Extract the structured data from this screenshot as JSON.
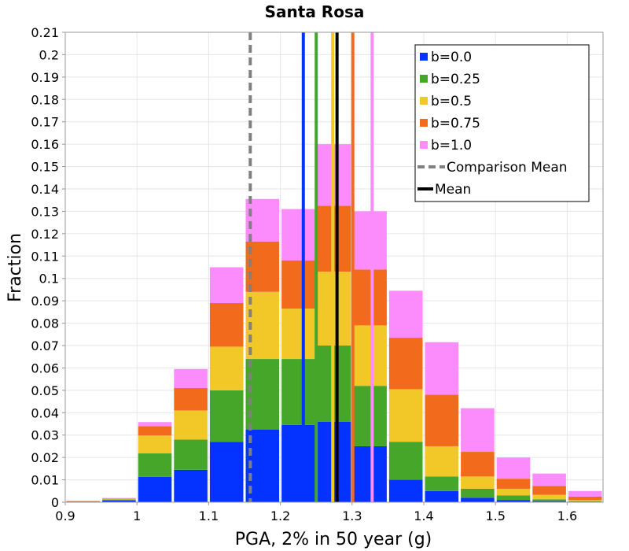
{
  "chart_data": {
    "type": "stacked-histogram",
    "title": "Santa Rosa",
    "xlabel": "PGA, 2% in 50 year (g)",
    "ylabel": "Fraction",
    "xlim": [
      0.9,
      1.65
    ],
    "ylim": [
      0,
      0.21
    ],
    "xticks": [
      0.9,
      1.0,
      1.1,
      1.2,
      1.3,
      1.4,
      1.5,
      1.6
    ],
    "xtick_labels": [
      "0.9",
      "1",
      "1.1",
      "1.2",
      "1.3",
      "1.4",
      "1.5",
      "1.6"
    ],
    "yticks": [
      0,
      0.01,
      0.02,
      0.03,
      0.04,
      0.05,
      0.06,
      0.07,
      0.08,
      0.09,
      0.1,
      0.11,
      0.12,
      0.13,
      0.14,
      0.15,
      0.16,
      0.17,
      0.18,
      0.19,
      0.2,
      0.21
    ],
    "ytick_labels": [
      "0",
      "0.01",
      "0.02",
      "0.03",
      "0.04",
      "0.05",
      "0.06",
      "0.07",
      "0.08",
      "0.09",
      "0.1",
      "0.11",
      "0.12",
      "0.13",
      "0.14",
      "0.15",
      "0.16",
      "0.17",
      "0.18",
      "0.19",
      "0.2",
      "0.21"
    ],
    "grid": true,
    "legend_position": "top-right",
    "bin_width": 0.05,
    "bin_starts": [
      0.9,
      0.95,
      1.0,
      1.05,
      1.1,
      1.15,
      1.2,
      1.25,
      1.3,
      1.35,
      1.4,
      1.45,
      1.5,
      1.55,
      1.6
    ],
    "series": [
      {
        "name": "b=0.0",
        "color": "#0433ff",
        "values": [
          0.0002,
          0.0008,
          0.0113,
          0.0145,
          0.027,
          0.0325,
          0.0345,
          0.036,
          0.025,
          0.01,
          0.005,
          0.002,
          0.001,
          0.0005,
          0.0002
        ]
      },
      {
        "name": "b=0.25",
        "color": "#46a62a",
        "values": [
          0.0002,
          0.0004,
          0.0105,
          0.0135,
          0.023,
          0.0315,
          0.0295,
          0.034,
          0.027,
          0.017,
          0.0065,
          0.004,
          0.002,
          0.0008,
          0.0003
        ]
      },
      {
        "name": "b=0.5",
        "color": "#f2c829",
        "values": [
          0.0001,
          0.0003,
          0.008,
          0.013,
          0.0195,
          0.03,
          0.0225,
          0.033,
          0.027,
          0.0235,
          0.0135,
          0.0055,
          0.003,
          0.002,
          0.0005
        ]
      },
      {
        "name": "b=0.75",
        "color": "#f26b1d",
        "values": [
          0.0001,
          0.0002,
          0.0042,
          0.01,
          0.0195,
          0.0225,
          0.0215,
          0.0295,
          0.025,
          0.023,
          0.023,
          0.011,
          0.0045,
          0.004,
          0.0015
        ]
      },
      {
        "name": "b=1.0",
        "color": "#fc8cfc",
        "values": [
          0.0001,
          0.0002,
          0.0018,
          0.0085,
          0.016,
          0.019,
          0.023,
          0.0275,
          0.026,
          0.021,
          0.0235,
          0.0195,
          0.0095,
          0.0055,
          0.0025
        ]
      }
    ],
    "mean_lines": [
      {
        "name": "b=0.0",
        "x": 1.232,
        "color": "#0433ff"
      },
      {
        "name": "b=0.25",
        "x": 1.25,
        "color": "#46a62a"
      },
      {
        "name": "b=0.5",
        "x": 1.273,
        "color": "#f2c829"
      },
      {
        "name": "b=0.75",
        "x": 1.301,
        "color": "#f26b1d"
      },
      {
        "name": "b=1.0",
        "x": 1.328,
        "color": "#fc8cfc"
      }
    ],
    "comparison_mean": {
      "name": "Comparison Mean",
      "x": 1.158,
      "color": "#808080",
      "style": "dashed"
    },
    "mean": {
      "name": "Mean",
      "x": 1.279,
      "color": "#000000"
    },
    "legend": [
      {
        "label": "b=0.0",
        "kind": "patch",
        "color": "#0433ff"
      },
      {
        "label": "b=0.25",
        "kind": "patch",
        "color": "#46a62a"
      },
      {
        "label": "b=0.5",
        "kind": "patch",
        "color": "#f2c829"
      },
      {
        "label": "b=0.75",
        "kind": "patch",
        "color": "#f26b1d"
      },
      {
        "label": "b=1.0",
        "kind": "patch",
        "color": "#fc8cfc"
      },
      {
        "label": "Comparison Mean",
        "kind": "dashed-line",
        "color": "#808080"
      },
      {
        "label": "Mean",
        "kind": "line",
        "color": "#000000"
      }
    ]
  }
}
